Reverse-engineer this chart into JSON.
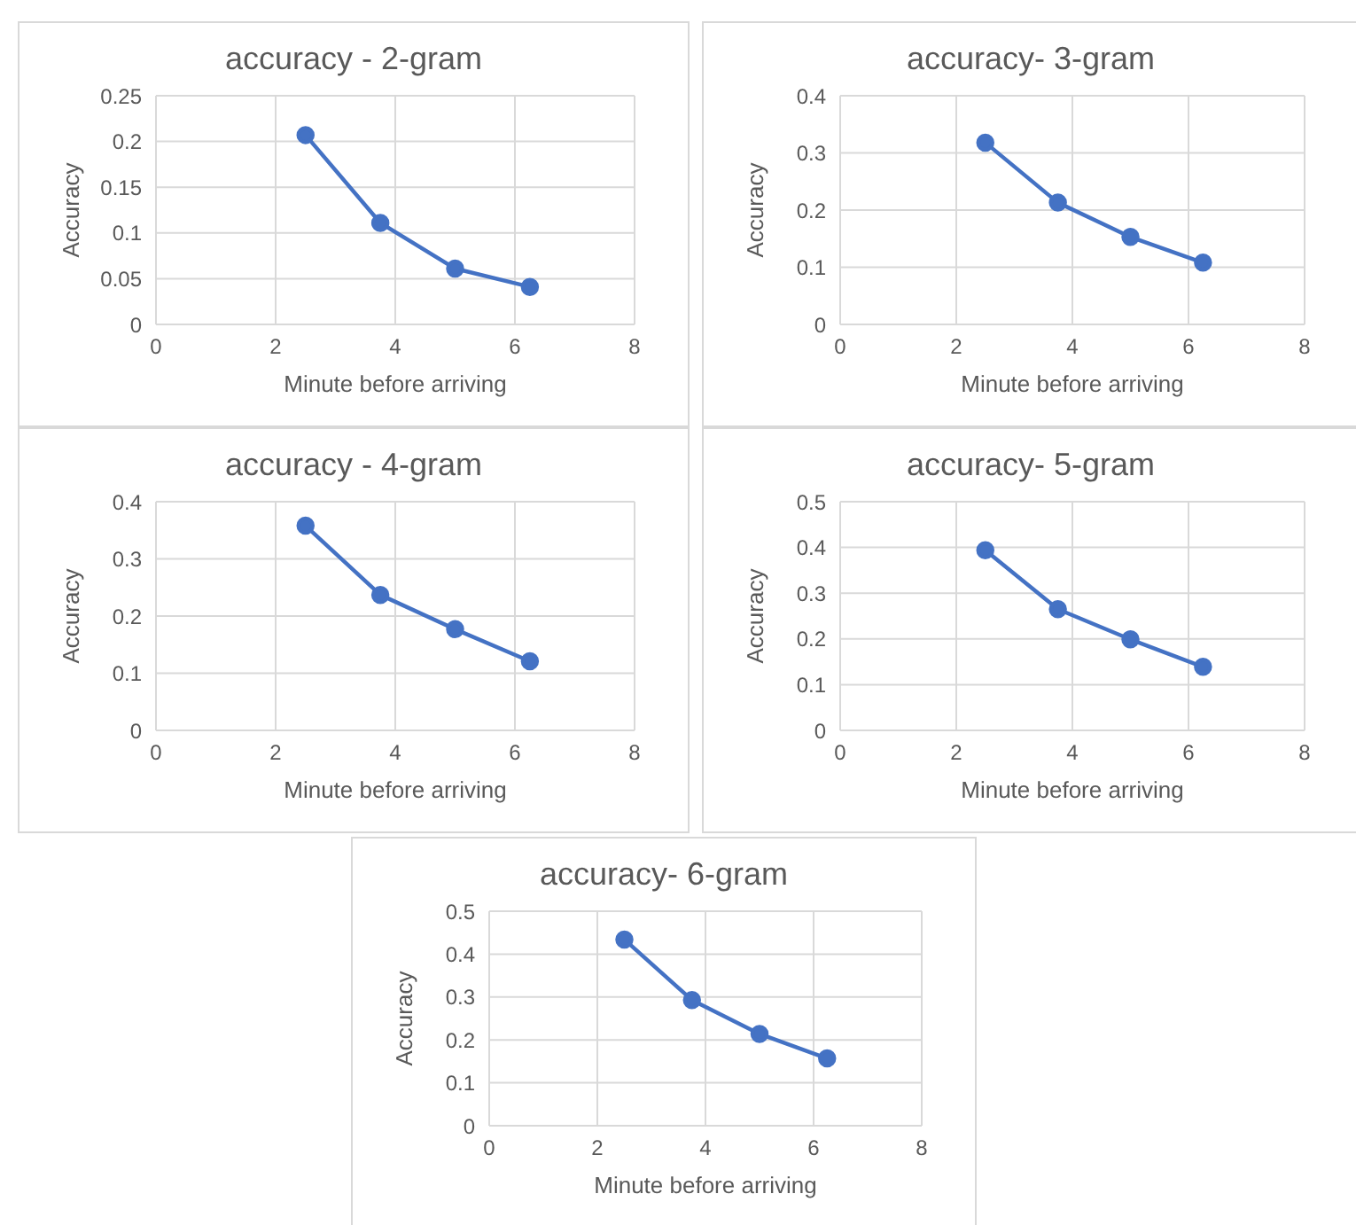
{
  "chart_data": [
    {
      "type": "line",
      "title": "accuracy - 2-gram",
      "xlabel": "Minute before arriving",
      "ylabel": "Accuracy",
      "x": [
        2.5,
        3.75,
        5,
        6.25
      ],
      "series": [
        {
          "color": "#4472c4",
          "values": [
            0.207,
            0.111,
            0.061,
            0.041
          ]
        }
      ],
      "xlim": [
        0,
        8
      ],
      "xticks": [
        0,
        2,
        4,
        6,
        8
      ],
      "ylim": [
        0,
        0.25
      ],
      "yticks": [
        0,
        0.05,
        0.1,
        0.15,
        0.2,
        0.25
      ],
      "grid": true,
      "marker": "circle",
      "line_style": "solid",
      "legend": false
    },
    {
      "type": "line",
      "title": "accuracy- 3-gram",
      "xlabel": "Minute before arriving",
      "ylabel": "Accuracy",
      "x": [
        2.5,
        3.75,
        5,
        6.25
      ],
      "series": [
        {
          "color": "#4472c4",
          "values": [
            0.318,
            0.213,
            0.153,
            0.108
          ]
        }
      ],
      "xlim": [
        0,
        8
      ],
      "xticks": [
        0,
        2,
        4,
        6,
        8
      ],
      "ylim": [
        0,
        0.4
      ],
      "yticks": [
        0,
        0.1,
        0.2,
        0.3,
        0.4
      ],
      "grid": true,
      "marker": "circle",
      "line_style": "solid",
      "legend": false
    },
    {
      "type": "line",
      "title": "accuracy - 4-gram",
      "xlabel": "Minute before arriving",
      "ylabel": "Accuracy",
      "x": [
        2.5,
        3.75,
        5,
        6.25
      ],
      "series": [
        {
          "color": "#4472c4",
          "values": [
            0.358,
            0.237,
            0.177,
            0.121
          ]
        }
      ],
      "xlim": [
        0,
        8
      ],
      "xticks": [
        0,
        2,
        4,
        6,
        8
      ],
      "ylim": [
        0,
        0.4
      ],
      "yticks": [
        0,
        0.1,
        0.2,
        0.3,
        0.4
      ],
      "grid": true,
      "marker": "circle",
      "line_style": "solid",
      "legend": false
    },
    {
      "type": "line",
      "title": "accuracy- 5-gram",
      "xlabel": "Minute before arriving",
      "ylabel": "Accuracy",
      "x": [
        2.5,
        3.75,
        5,
        6.25
      ],
      "series": [
        {
          "color": "#4472c4",
          "values": [
            0.394,
            0.265,
            0.199,
            0.139
          ]
        }
      ],
      "xlim": [
        0,
        8
      ],
      "xticks": [
        0,
        2,
        4,
        6,
        8
      ],
      "ylim": [
        0,
        0.5
      ],
      "yticks": [
        0,
        0.1,
        0.2,
        0.3,
        0.4,
        0.5
      ],
      "grid": true,
      "marker": "circle",
      "line_style": "solid",
      "legend": false
    },
    {
      "type": "line",
      "title": "accuracy- 6-gram",
      "xlabel": "Minute before arriving",
      "ylabel": "Accuracy",
      "x": [
        2.5,
        3.75,
        5,
        6.25
      ],
      "series": [
        {
          "color": "#4472c4",
          "values": [
            0.434,
            0.293,
            0.214,
            0.157
          ]
        }
      ],
      "xlim": [
        0,
        8
      ],
      "xticks": [
        0,
        2,
        4,
        6,
        8
      ],
      "ylim": [
        0,
        0.5
      ],
      "yticks": [
        0,
        0.1,
        0.2,
        0.3,
        0.4,
        0.5
      ],
      "grid": true,
      "marker": "circle",
      "line_style": "solid",
      "legend": false
    }
  ]
}
